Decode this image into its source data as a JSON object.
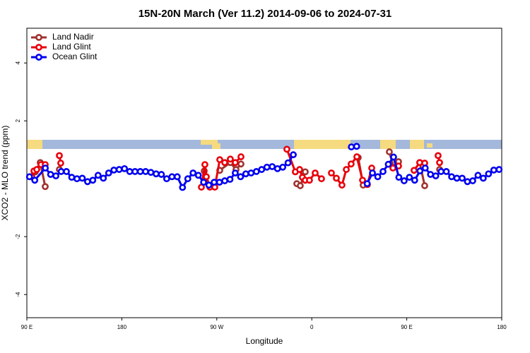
{
  "chart_data": {
    "type": "line",
    "title": "15N-20N March (Ver 11.2)   2014-09-06 to 2024-07-31",
    "x_label": "Longitude",
    "y_label": "XCO2 - MLO trend (ppm)",
    "xlim": [
      90,
      540
    ],
    "ylim": [
      -4.8,
      5.2
    ],
    "xticks": [
      {
        "value": 90,
        "label": "90 E"
      },
      {
        "value": 180,
        "label": "180"
      },
      {
        "value": 270,
        "label": "90 W"
      },
      {
        "value": 360,
        "label": "0"
      },
      {
        "value": 450,
        "label": "90 E"
      },
      {
        "value": 540,
        "label": "180"
      }
    ],
    "yticks": [
      -4,
      -2,
      2,
      4
    ],
    "legend": "top-left",
    "series": [
      {
        "name": "Land Nadir",
        "color": "#a0322d",
        "x": [
          98.0,
          102.7,
          107.4,
          114,
          120.8,
          190,
          258.1,
          262.8,
          268,
          272.8,
          282.8,
          288.2,
          292.9,
          320,
          345.8,
          349.1,
          353.8,
          380,
          404.0,
          408.7,
          420,
          433.5,
          437.5,
          442.2,
          450,
          462.3,
          467.0,
          474,
          481.1
        ],
        "values": [
          0.24,
          0.56,
          -0.27,
          null,
          0.32,
          null,
          0.27,
          -0.22,
          null,
          0.29,
          0.56,
          0.32,
          0.51,
          null,
          -0.17,
          -0.24,
          0.24,
          null,
          0.73,
          -0.22,
          null,
          0.93,
          0.39,
          0.59,
          null,
          0.56,
          -0.24,
          null,
          0.32
        ]
      },
      {
        "name": "Land Glint",
        "color": "#e8000b",
        "x": [
          94.7,
          96.7,
          99.4,
          103.4,
          107.4,
          114,
          120.8,
          122.1,
          190,
          255.4,
          258.7,
          260.1,
          263.4,
          268.1,
          272.8,
          277.5,
          282.8,
          287.5,
          292.9,
          315,
          336.4,
          344.4,
          348.5,
          351.1,
          353.8,
          357.8,
          363.2,
          369.2,
          374,
          378.6,
          383.3,
          388.6,
          392.7,
          397.3,
          402.7,
          408.1,
          412.7,
          416.8,
          427,
          436.9,
          442.2,
          450,
          456.9,
          462.3,
          467.0,
          473,
          479.7,
          481.1
        ],
        "values": [
          0.07,
          0.27,
          0.32,
          0.49,
          0.49,
          null,
          0.8,
          0.54,
          null,
          -0.29,
          0.49,
          0.07,
          -0.29,
          -0.29,
          0.66,
          0.56,
          0.68,
          0.56,
          0.76,
          null,
          1.02,
          0.24,
          0.32,
          0.05,
          -0.05,
          -0.05,
          0.2,
          0.0,
          null,
          0.2,
          0.02,
          -0.22,
          0.32,
          0.51,
          0.76,
          -0.05,
          -0.2,
          0.37,
          null,
          0.37,
          0.44,
          null,
          0.29,
          0.56,
          0.54,
          null,
          0.8,
          0.56
        ]
      },
      {
        "name": "Ocean Glint",
        "color": "#0000f0",
        "x": [
          92.5,
          97.5,
          107.5,
          112.5,
          117.5,
          122.5,
          127.5,
          132.5,
          137.5,
          142.5,
          147.5,
          152.5,
          157.5,
          162.5,
          167.5,
          172.5,
          177.5,
          182.5,
          187.5,
          192.5,
          197.5,
          202.5,
          207.5,
          212.5,
          217.5,
          222.5,
          227.5,
          232.5,
          237.5,
          242.5,
          247.5,
          252.5,
          257.5,
          262.5,
          267.5,
          272.5,
          277.5,
          282.5,
          287.5,
          292.5,
          297.5,
          302.5,
          307.5,
          312.5,
          317.5,
          322.5,
          327.5,
          332.5,
          337.5,
          342.5,
          347.5,
          397.5,
          402.5,
          407.5,
          412.5,
          417.5,
          422.5,
          427.5,
          432.5,
          437.5,
          442.5,
          447.5,
          452.5,
          457.5,
          462.5,
          467.5,
          472.5,
          477.5,
          482.5,
          487.5,
          492.5,
          497.5,
          502.5,
          507.5,
          512.5,
          517.5,
          522.5,
          527.5,
          532.5,
          537.5
        ],
        "values": [
          0.07,
          -0.05,
          0.37,
          0.15,
          0.1,
          0.25,
          0.25,
          0.05,
          0.0,
          0.02,
          -0.1,
          -0.05,
          0.12,
          0.02,
          0.2,
          0.3,
          0.32,
          0.35,
          0.25,
          0.25,
          0.25,
          0.25,
          0.22,
          0.17,
          0.15,
          0.0,
          0.07,
          0.07,
          -0.3,
          0.0,
          0.2,
          0.12,
          -0.12,
          -0.22,
          -0.12,
          -0.12,
          -0.07,
          -0.02,
          0.2,
          0.07,
          0.17,
          0.2,
          0.25,
          0.32,
          0.4,
          0.42,
          0.35,
          0.4,
          0.55,
          0.83,
          null,
          1.1,
          1.12,
          null,
          -0.17,
          0.2,
          0.07,
          0.25,
          0.5,
          0.75,
          0.05,
          -0.07,
          0.05,
          -0.05,
          0.27,
          0.37,
          0.15,
          0.1,
          0.25,
          0.25,
          0.07,
          0.02,
          0.02,
          -0.1,
          -0.07,
          0.12,
          0.02,
          0.17,
          0.3,
          0.32
        ]
      }
    ]
  }
}
